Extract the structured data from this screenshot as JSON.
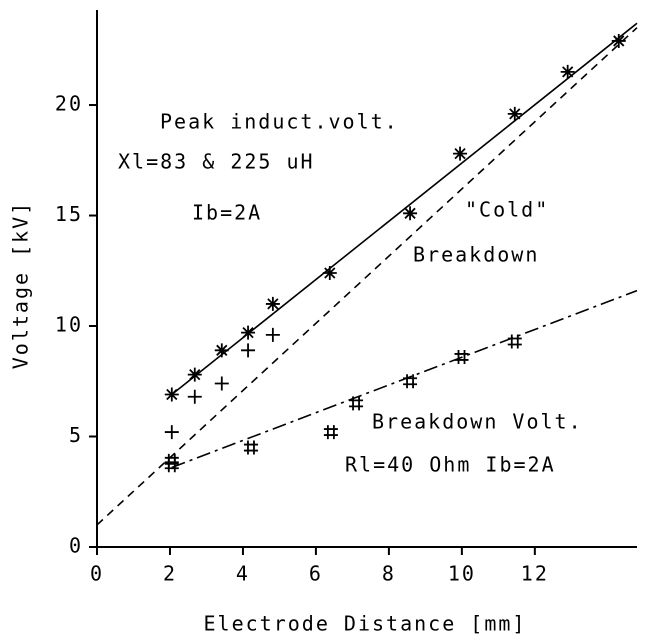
{
  "chart_data": {
    "type": "scatter",
    "xlabel": "Electrode Distance [mm]",
    "ylabel": "Voltage [kV]",
    "xlim": [
      0,
      14.8
    ],
    "ylim": [
      0,
      24.3
    ],
    "xticks": [
      0,
      2,
      4,
      6,
      8,
      10,
      12
    ],
    "yticks": [
      0,
      5,
      10,
      15,
      20
    ],
    "annotations": [
      "Peak induct.volt.",
      "Xl=83 & 225 uH",
      "Ib=2A",
      "\"Cold\"",
      "Breakdown",
      "Breakdown Volt.",
      "Rl=40 Ohm Ib=2A"
    ],
    "series": [
      {
        "marker": "star",
        "color": "#000000",
        "x": [
          2.05,
          2.68,
          3.42,
          4.14,
          4.82,
          6.38,
          8.58,
          9.95,
          11.45,
          12.9,
          14.3
        ],
        "values": [
          6.9,
          7.8,
          8.9,
          9.7,
          11.0,
          12.4,
          15.1,
          17.8,
          19.6,
          21.5,
          22.9
        ]
      },
      {
        "marker": "plus",
        "color": "#000000",
        "x": [
          2.05,
          2.68,
          3.42,
          4.14,
          4.82
        ],
        "values": [
          5.2,
          6.8,
          7.4,
          8.9,
          9.6
        ]
      },
      {
        "marker": "hash",
        "color": "#000000",
        "x": [
          2.05,
          2.05,
          4.22,
          6.41,
          7.1,
          8.58,
          9.99,
          11.45
        ],
        "values": [
          3.9,
          3.7,
          4.5,
          5.2,
          6.5,
          7.5,
          8.6,
          9.3
        ]
      }
    ],
    "lines": [
      {
        "style": "solid",
        "x": [
          2.05,
          14.8
        ],
        "y": [
          6.9,
          23.7
        ]
      },
      {
        "style": "dashed",
        "x": [
          0,
          14.8
        ],
        "y": [
          1.0,
          23.5
        ]
      },
      {
        "style": "dashdot",
        "x": [
          2.05,
          14.8
        ],
        "y": [
          3.6,
          11.6
        ]
      }
    ]
  }
}
